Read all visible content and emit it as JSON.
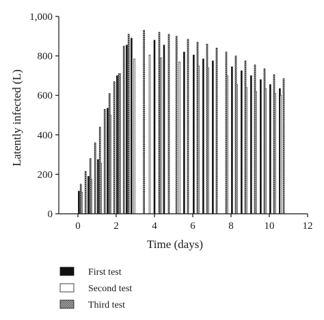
{
  "chart_data": {
    "type": "bar",
    "xlabel": "Time (days)",
    "ylabel": "Latently infected (L)",
    "xlim": [
      -1,
      12
    ],
    "ylim": [
      0,
      1000
    ],
    "x_ticks": [
      0,
      2,
      4,
      6,
      8,
      10,
      12
    ],
    "x_tick_labels": [
      "0",
      "2",
      "4",
      "6",
      "8",
      "10",
      "12"
    ],
    "y_ticks": [
      0,
      200,
      400,
      600,
      800,
      1000
    ],
    "y_tick_labels": [
      "0",
      "200",
      "400",
      "600",
      "800",
      "1,000"
    ],
    "grid": false,
    "legend_position": "bottom-left",
    "bar_width_days": 0.07,
    "series": [
      {
        "name": "First test",
        "style": "solid",
        "color": "#111111",
        "x": [
          0.05,
          0.55,
          1.05,
          1.55,
          2.05,
          2.55,
          2.8,
          4.0,
          4.5,
          5.55,
          6.05,
          6.55,
          7.05,
          8.05,
          8.55,
          9.05,
          9.55,
          10.05,
          10.55
        ],
        "values": [
          115,
          190,
          275,
          535,
          700,
          855,
          890,
          880,
          855,
          820,
          805,
          785,
          775,
          745,
          725,
          700,
          680,
          655,
          635
        ]
      },
      {
        "name": "Second test",
        "style": "open",
        "color": "#ffffff",
        "x": [
          0.2,
          0.7,
          1.2,
          1.7,
          2.2,
          2.95,
          3.75,
          4.35,
          5.3,
          6.3,
          6.8,
          7.8,
          8.3,
          8.8,
          9.3,
          9.8,
          10.3,
          10.6
        ],
        "values": [
          110,
          175,
          255,
          500,
          710,
          785,
          805,
          790,
          770,
          750,
          740,
          700,
          655,
          640,
          620,
          635,
          610,
          600
        ]
      },
      {
        "name": "Third test",
        "style": "hatched",
        "color": "#555555",
        "x": [
          0.15,
          0.4,
          0.65,
          0.9,
          1.15,
          1.4,
          1.65,
          1.9,
          2.15,
          2.4,
          2.65,
          3.45,
          4.25,
          4.75,
          5.15,
          5.75,
          6.25,
          6.75,
          7.25,
          7.75,
          8.25,
          8.75,
          9.25,
          9.75,
          10.25,
          10.75
        ],
        "values": [
          150,
          215,
          280,
          360,
          440,
          530,
          610,
          670,
          710,
          850,
          910,
          930,
          920,
          910,
          900,
          885,
          870,
          860,
          840,
          820,
          800,
          775,
          755,
          735,
          705,
          685
        ]
      }
    ]
  }
}
